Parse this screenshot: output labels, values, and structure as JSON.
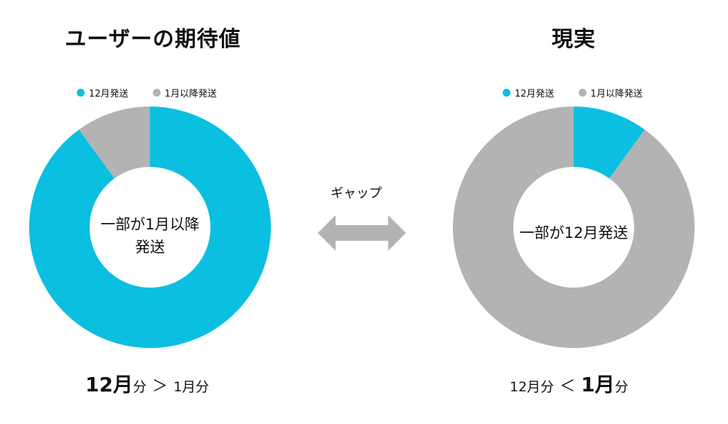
{
  "colors": {
    "primary": "#0bbfe0",
    "secondary": "#b3b3b3"
  },
  "gap_label": "ギャップ",
  "chart_data": [
    {
      "type": "pie",
      "title": "ユーザーの期待値",
      "legend": [
        "12月発送",
        "1月以降発送"
      ],
      "legend_position": "top",
      "categories": [
        "12月発送",
        "1月以降発送"
      ],
      "values": [
        90,
        10
      ],
      "center_label": [
        "一部が1月以降",
        "発送"
      ],
      "caption": {
        "big_num": "12月",
        "big_unit": "分",
        "sep": "＞",
        "small": "1月分"
      }
    },
    {
      "type": "pie",
      "title": "現実",
      "legend": [
        "12月発送",
        "1月以降発送"
      ],
      "legend_position": "top",
      "categories": [
        "12月発送",
        "1月以降発送"
      ],
      "values": [
        10,
        90
      ],
      "center_label": [
        "一部が12月発送"
      ],
      "caption": {
        "small": "12月分",
        "sep": "＜",
        "big_num": "1月",
        "big_unit": "分"
      }
    }
  ]
}
